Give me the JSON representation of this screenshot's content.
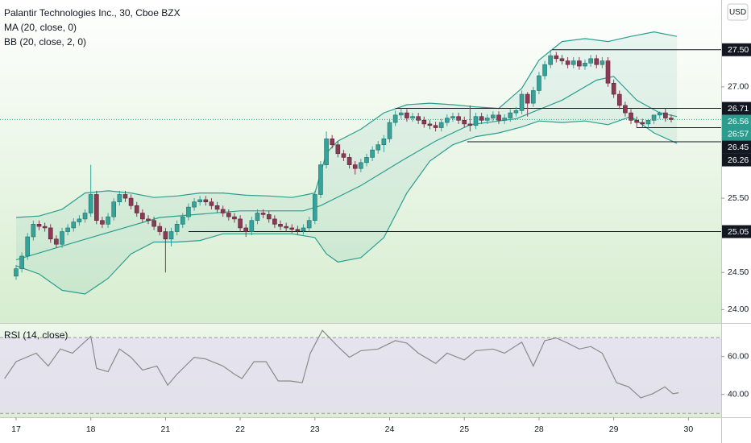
{
  "chart_data": [
    {
      "type": "candlestick",
      "title": "Palantir Technologies Inc., 30, Cboe BZX",
      "indicators": [
        "MA (20, close, 0)",
        "BB (20, close, 2, 0)"
      ],
      "currency": "USD",
      "up_color": "#35a39a",
      "down_color": "#8b3a55",
      "open": [
        24.45,
        24.55,
        24.72,
        24.98,
        25.15,
        25.12,
        25.1,
        24.95,
        24.88,
        25.05,
        25.1,
        25.18,
        25.22,
        25.3,
        25.55,
        25.2,
        25.15,
        25.25,
        25.45,
        25.55,
        25.5,
        25.4,
        25.3,
        25.22,
        25.2,
        25.12,
        25.05,
        24.95,
        25.05,
        25.15,
        25.25,
        25.38,
        25.45,
        25.48,
        25.45,
        25.4,
        25.35,
        25.3,
        25.25,
        25.22,
        25.1,
        25.05,
        25.2,
        25.3,
        25.28,
        25.22,
        25.15,
        25.12,
        25.1,
        25.08,
        25.06,
        25.1,
        25.2,
        25.55,
        25.95,
        26.3,
        26.22,
        26.1,
        26.05,
        25.95,
        25.9,
        25.98,
        26.05,
        26.15,
        26.22,
        26.3,
        26.52,
        26.62,
        26.65,
        26.58,
        26.6,
        26.55,
        26.5,
        26.48,
        26.45,
        26.52,
        26.58,
        26.6,
        26.55,
        26.5,
        26.48,
        26.6,
        26.55,
        26.58,
        26.62,
        26.55,
        26.58,
        26.65,
        26.68,
        26.9,
        26.78,
        26.95,
        27.15,
        27.3,
        27.42,
        27.38,
        27.35,
        27.3,
        27.35,
        27.28,
        27.32,
        27.38,
        27.3,
        27.35,
        27.05,
        26.9,
        26.75,
        26.65,
        26.55,
        26.52,
        26.5,
        26.55,
        26.62,
        26.65,
        26.58
      ],
      "high": [
        24.6,
        24.77,
        25.03,
        25.2,
        25.2,
        25.17,
        25.15,
        25.0,
        25.1,
        25.15,
        25.23,
        25.27,
        25.35,
        25.95,
        25.6,
        25.25,
        25.3,
        25.5,
        25.6,
        25.6,
        25.55,
        25.45,
        25.35,
        25.27,
        25.25,
        25.17,
        25.1,
        25.1,
        25.2,
        25.3,
        25.43,
        25.5,
        25.53,
        25.53,
        25.5,
        25.45,
        25.4,
        25.35,
        25.3,
        25.27,
        25.15,
        25.25,
        25.35,
        25.35,
        25.33,
        25.27,
        25.2,
        25.17,
        25.15,
        25.13,
        25.15,
        25.25,
        25.6,
        26.0,
        26.4,
        26.35,
        26.27,
        26.15,
        26.1,
        26.0,
        26.03,
        26.1,
        26.2,
        26.27,
        26.35,
        26.57,
        26.68,
        26.71,
        26.7,
        26.65,
        26.65,
        26.6,
        26.55,
        26.53,
        26.57,
        26.63,
        26.65,
        26.65,
        26.6,
        26.75,
        26.65,
        26.65,
        26.63,
        26.67,
        26.67,
        26.63,
        26.7,
        26.73,
        26.95,
        26.93,
        27.0,
        27.2,
        27.35,
        27.5,
        27.47,
        27.43,
        27.4,
        27.4,
        27.4,
        27.37,
        27.43,
        27.43,
        27.4,
        27.4,
        27.1,
        26.95,
        26.8,
        26.7,
        26.6,
        26.57,
        26.57,
        26.6,
        26.67,
        26.71,
        26.63
      ],
      "low": [
        24.4,
        24.5,
        24.67,
        24.93,
        25.07,
        25.05,
        24.9,
        24.83,
        24.83,
        25.0,
        25.05,
        25.13,
        25.17,
        25.25,
        25.15,
        25.1,
        25.1,
        25.2,
        25.4,
        25.45,
        25.35,
        25.25,
        25.17,
        25.15,
        25.07,
        25.0,
        24.5,
        24.85,
        25.0,
        25.1,
        25.2,
        25.33,
        25.4,
        25.4,
        25.35,
        25.3,
        25.25,
        25.2,
        25.17,
        25.05,
        24.98,
        25.0,
        25.15,
        25.23,
        25.17,
        25.1,
        25.07,
        25.05,
        25.03,
        25.01,
        25.01,
        25.05,
        25.15,
        25.5,
        25.9,
        26.17,
        26.05,
        26.0,
        25.9,
        25.82,
        25.85,
        25.93,
        26.0,
        26.1,
        26.12,
        26.25,
        26.47,
        26.57,
        26.53,
        26.53,
        26.5,
        26.45,
        26.43,
        26.4,
        26.4,
        26.47,
        26.53,
        26.5,
        26.45,
        26.4,
        26.43,
        26.5,
        26.5,
        26.53,
        26.5,
        26.5,
        26.53,
        26.6,
        26.63,
        26.6,
        26.73,
        26.9,
        27.1,
        27.25,
        27.33,
        27.3,
        27.25,
        27.25,
        27.23,
        27.23,
        27.27,
        27.25,
        27.25,
        27.0,
        26.85,
        26.7,
        26.6,
        26.5,
        26.45,
        26.45,
        26.45,
        26.5,
        26.57,
        26.53,
        26.52
      ],
      "close": [
        24.55,
        24.72,
        24.98,
        25.15,
        25.12,
        25.1,
        24.95,
        24.88,
        25.05,
        25.1,
        25.18,
        25.22,
        25.3,
        25.55,
        25.2,
        25.15,
        25.25,
        25.45,
        25.55,
        25.5,
        25.4,
        25.3,
        25.22,
        25.2,
        25.12,
        25.05,
        24.95,
        25.05,
        25.15,
        25.25,
        25.38,
        25.45,
        25.48,
        25.45,
        25.4,
        25.35,
        25.3,
        25.25,
        25.22,
        25.1,
        25.05,
        25.2,
        25.3,
        25.28,
        25.22,
        25.15,
        25.12,
        25.1,
        25.08,
        25.06,
        25.1,
        25.2,
        25.55,
        25.95,
        26.3,
        26.22,
        26.1,
        26.05,
        25.95,
        25.9,
        25.98,
        26.05,
        26.15,
        26.22,
        26.3,
        26.52,
        26.62,
        26.65,
        26.58,
        26.6,
        26.55,
        26.5,
        26.48,
        26.45,
        26.52,
        26.58,
        26.6,
        26.55,
        26.5,
        26.48,
        26.6,
        26.55,
        26.58,
        26.62,
        26.55,
        26.58,
        26.65,
        26.68,
        26.9,
        26.78,
        26.95,
        27.15,
        27.3,
        27.42,
        27.38,
        27.35,
        27.3,
        27.35,
        27.28,
        27.32,
        27.38,
        27.3,
        27.35,
        27.05,
        26.9,
        26.75,
        26.65,
        26.55,
        26.52,
        26.5,
        26.55,
        26.62,
        26.65,
        26.58,
        26.56
      ],
      "bollinger": {
        "color": "#2b9e8f",
        "x": [
          0,
          4,
          8,
          12,
          16,
          20,
          24,
          28,
          32,
          36,
          40,
          44,
          48,
          52,
          54,
          56,
          60,
          64,
          68,
          72,
          76,
          80,
          84,
          88,
          91,
          95,
          99,
          103,
          107,
          111,
          115
        ],
        "upper": [
          25.24,
          25.26,
          25.35,
          25.57,
          25.6,
          25.57,
          25.51,
          25.53,
          25.57,
          25.57,
          25.54,
          25.53,
          25.51,
          25.57,
          26.11,
          26.27,
          26.43,
          26.65,
          26.76,
          26.78,
          26.76,
          26.73,
          26.71,
          26.98,
          27.36,
          27.61,
          27.65,
          27.61,
          27.68,
          27.74,
          27.68
        ],
        "lower": [
          24.59,
          24.48,
          24.26,
          24.21,
          24.42,
          24.75,
          24.91,
          24.91,
          24.93,
          25.02,
          25.02,
          25.02,
          25.02,
          24.97,
          24.75,
          24.64,
          24.7,
          24.97,
          25.57,
          26.0,
          26.22,
          26.33,
          26.38,
          26.46,
          26.54,
          26.52,
          26.54,
          26.49,
          26.6,
          26.38,
          26.24
        ]
      },
      "ma": {
        "color": "#2b9e8f",
        "x": [
          0,
          13,
          25,
          39,
          50,
          53,
          60,
          67,
          73,
          79,
          87,
          95,
          101,
          104,
          108,
          112,
          115
        ],
        "values": [
          24.67,
          24.97,
          25.24,
          25.33,
          25.33,
          25.4,
          25.67,
          26.0,
          26.27,
          26.49,
          26.57,
          26.82,
          27.09,
          27.14,
          26.82,
          26.65,
          26.6
        ]
      },
      "levels": [
        {
          "value": 27.5,
          "label": "27.50",
          "x": 93.3
        },
        {
          "value": 26.71,
          "label": "26.71",
          "x": 66
        },
        {
          "value": 26.45,
          "label": "26.45",
          "x": 108
        },
        {
          "value": 26.26,
          "label": "26.26",
          "x": 78.5
        },
        {
          "value": 25.05,
          "label": "25.05",
          "x": 30
        }
      ],
      "last_price": {
        "value": 26.56,
        "label": "26.56",
        "countdown": "26:57",
        "color": "#2a9d8f"
      },
      "ylim": [
        23.83,
        28.17
      ],
      "yticks": [
        {
          "value": 24,
          "label": "24.00"
        },
        {
          "value": 24.5,
          "label": "24.50"
        },
        {
          "value": 25.5,
          "label": "25.50"
        },
        {
          "value": 27,
          "label": "27.00"
        }
      ],
      "xlim": [
        -2.8,
        122.7
      ],
      "xticks": [
        {
          "value": 0,
          "label": "17"
        },
        {
          "value": 13,
          "label": "18"
        },
        {
          "value": 26,
          "label": "21"
        },
        {
          "value": 39,
          "label": "22"
        },
        {
          "value": 52,
          "label": "23"
        },
        {
          "value": 65,
          "label": "24"
        },
        {
          "value": 78,
          "label": "25"
        },
        {
          "value": 91,
          "label": "28"
        },
        {
          "value": 104,
          "label": "29"
        },
        {
          "value": 117,
          "label": "30"
        }
      ]
    },
    {
      "type": "line",
      "title": "RSI (14, close)",
      "color": "#8a8a8a",
      "band_color": "#e4def0",
      "x": [
        -2,
        0,
        3.5,
        5.6,
        7.7,
        9.8,
        13,
        14,
        16,
        18,
        20,
        22,
        24.5,
        26.4,
        28,
        31,
        33,
        36,
        38,
        39.3,
        41.4,
        43.5,
        45.6,
        47.7,
        49.8,
        51.2,
        53.3,
        56,
        58,
        60,
        63,
        66,
        68,
        70,
        73,
        75,
        78,
        80,
        83,
        85,
        88,
        90,
        92,
        94,
        96,
        98,
        100,
        102,
        104.5,
        106.6,
        108.7,
        110.8,
        112.9,
        114.3,
        115.3
      ],
      "values": [
        48.4,
        57.3,
        61.8,
        55,
        64,
        61.8,
        70.7,
        53.8,
        52,
        64,
        59.6,
        52.9,
        55,
        44.9,
        50.7,
        59.6,
        58.7,
        55,
        50.7,
        48.4,
        57.3,
        57.3,
        47.1,
        47.1,
        46.2,
        61.8,
        73.8,
        65.3,
        59.6,
        63.1,
        64,
        68.4,
        67.1,
        61.8,
        56.4,
        61.8,
        58.2,
        63.1,
        64,
        61.8,
        67.6,
        55,
        68.4,
        69.8,
        67.1,
        64,
        65.3,
        61.8,
        46.2,
        44,
        38.2,
        40.4,
        44,
        40.4,
        40.9
      ],
      "bands": [
        70,
        30
      ],
      "ylim": [
        28.4,
        77.3
      ],
      "yticks": [
        {
          "value": 60,
          "label": "60.00"
        },
        {
          "value": 40,
          "label": "40.00"
        }
      ]
    }
  ]
}
